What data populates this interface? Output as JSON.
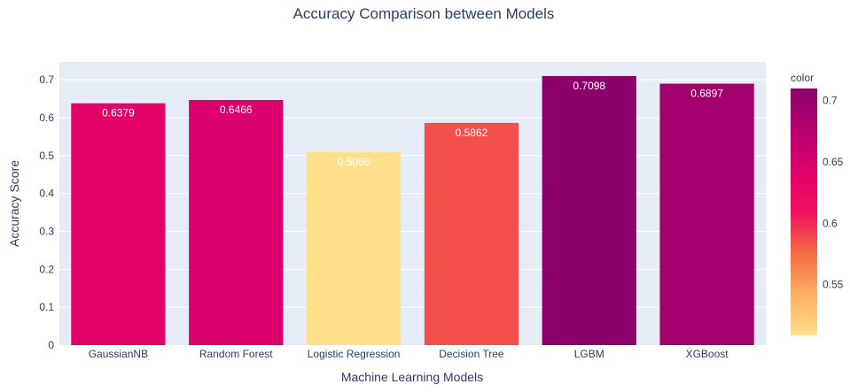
{
  "chart_data": {
    "type": "bar",
    "title": "Accuracy Comparison between Models",
    "xlabel": "Machine Learning Models",
    "ylabel": "Accuracy Score",
    "categories": [
      "GaussianNB",
      "Random Forest",
      "Logistic Regression",
      "Decision Tree",
      "LGBM",
      "XGBoost"
    ],
    "values": [
      0.6379,
      0.6466,
      0.5086,
      0.5862,
      0.7098,
      0.6897
    ],
    "data_labels": [
      "0.6379",
      "0.6466",
      "0.5086",
      "0.5862",
      "0.7098",
      "0.6897"
    ],
    "ylim": [
      0,
      0.747
    ],
    "yticks": [
      0,
      0.1,
      0.2,
      0.3,
      0.4,
      0.5,
      0.6,
      0.7
    ],
    "ytick_labels": [
      "0",
      "0.1",
      "0.2",
      "0.3",
      "0.4",
      "0.5",
      "0.6",
      "0.7"
    ],
    "grid": true,
    "colorbar": {
      "title": "color",
      "range": [
        0.5086,
        0.7098
      ],
      "ticks": [
        0.55,
        0.6,
        0.65,
        0.7
      ],
      "tick_labels": [
        "0.55",
        "0.6",
        "0.65",
        "0.7"
      ],
      "colorscale": [
        "#fee08b",
        "#fdae61",
        "#f46d43",
        "#f1105d",
        "#e0006a",
        "#b5006f",
        "#8b006a"
      ]
    }
  }
}
